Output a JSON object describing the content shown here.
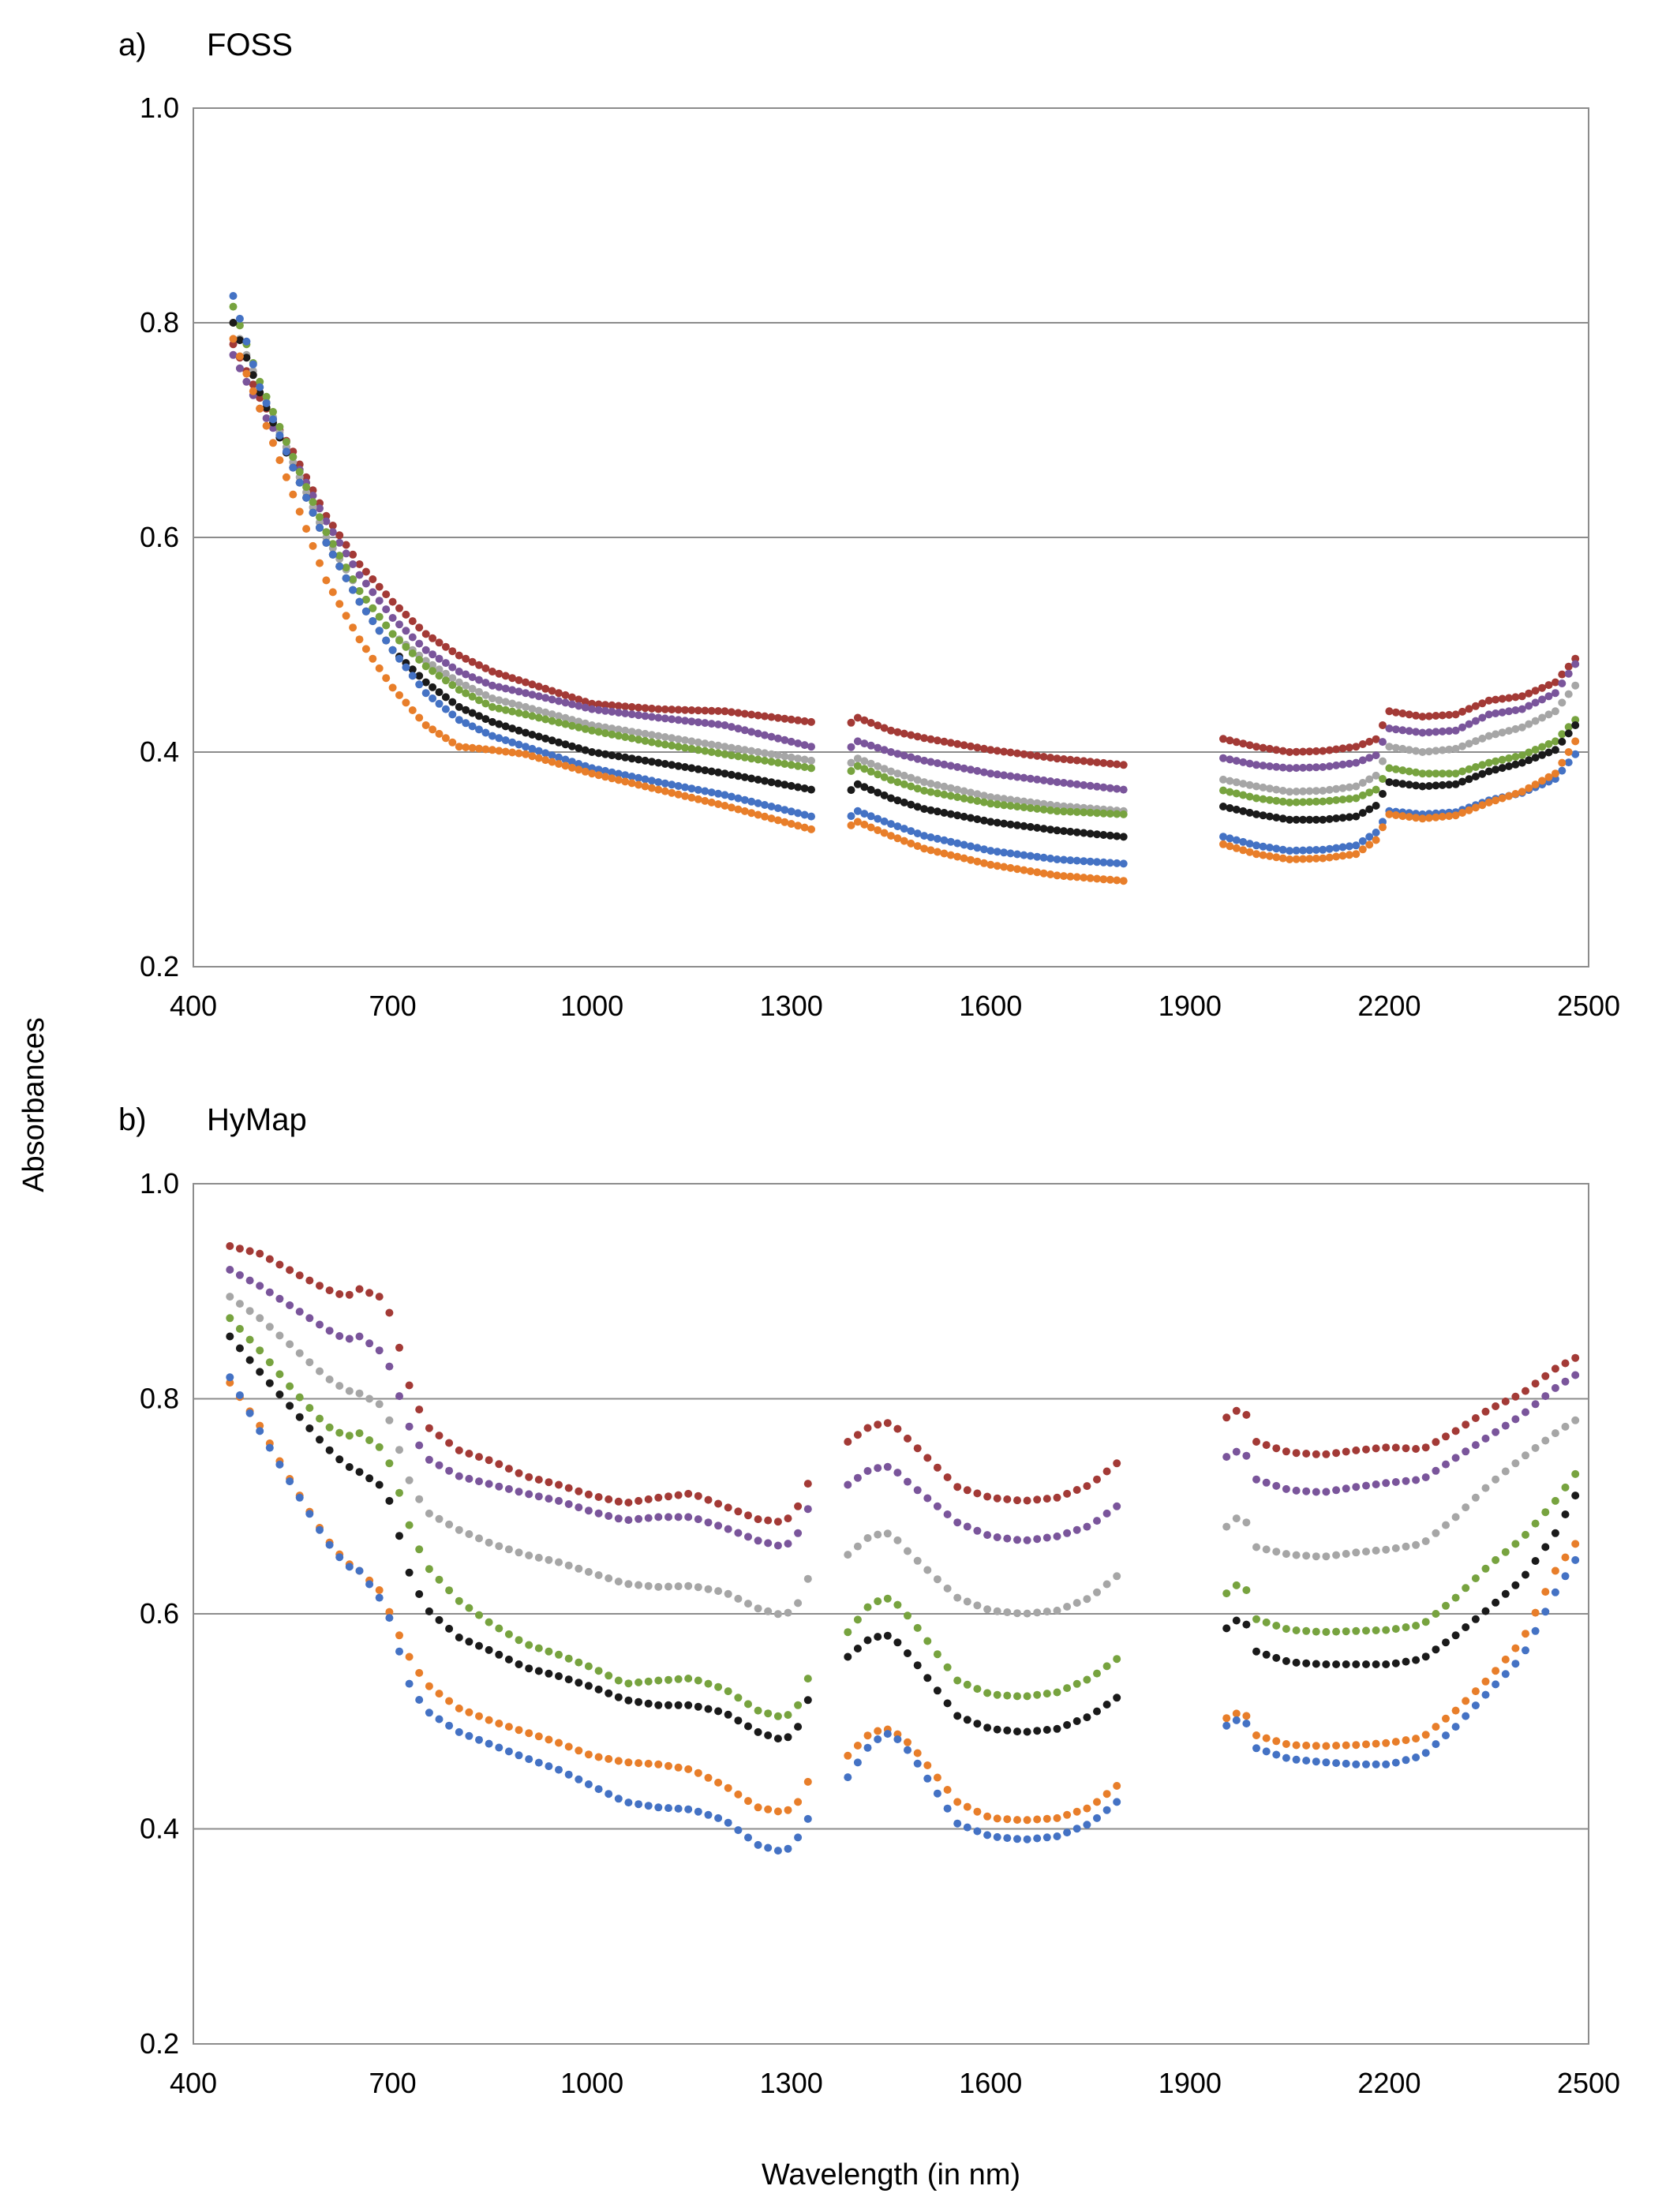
{
  "figure": {
    "y_axis_title": "Absorbances",
    "x_axis_title": "Wavelength (in nm)"
  },
  "chart_data": [
    {
      "type": "scatter",
      "panel": "a)",
      "title": "FOSS",
      "xlabel": "Wavelength (in nm)",
      "ylabel": "Absorbances",
      "xlim": [
        400,
        2500
      ],
      "ylim": [
        0.2,
        1.0
      ],
      "xticks": [
        "400",
        "700",
        "1000",
        "1300",
        "1600",
        "1900",
        "2200",
        "2500"
      ],
      "yticks": [
        "0.2",
        "0.4",
        "0.6",
        "0.8",
        "1.0"
      ],
      "grid": "horizontal",
      "gaps_nm": [
        [
          1330,
          1385
        ],
        [
          1800,
          1945
        ]
      ],
      "x": [
        460,
        500,
        550,
        600,
        650,
        700,
        750,
        800,
        850,
        900,
        1000,
        1100,
        1200,
        1330,
        1385,
        1400,
        1450,
        1500,
        1600,
        1700,
        1800,
        1945,
        2000,
        2050,
        2100,
        2150,
        2180,
        2200,
        2250,
        2300,
        2350,
        2400,
        2450,
        2480
      ],
      "series": [
        {
          "name": "dark red",
          "color": "#A33A36",
          "values": [
            0.78,
            0.73,
            0.68,
            0.62,
            0.575,
            0.54,
            0.51,
            0.49,
            0.475,
            0.465,
            0.445,
            0.44,
            0.438,
            0.428,
            0.425,
            0.432,
            0.42,
            0.413,
            0.402,
            0.394,
            0.388,
            0.413,
            0.405,
            0.4,
            0.401,
            0.405,
            0.412,
            0.438,
            0.433,
            0.435,
            0.448,
            0.452,
            0.465,
            0.487
          ]
        },
        {
          "name": "purple",
          "color": "#7A559B",
          "values": [
            0.77,
            0.72,
            0.675,
            0.615,
            0.565,
            0.525,
            0.495,
            0.475,
            0.462,
            0.455,
            0.44,
            0.432,
            0.425,
            0.405,
            0.402,
            0.41,
            0.4,
            0.392,
            0.38,
            0.372,
            0.365,
            0.395,
            0.388,
            0.385,
            0.386,
            0.39,
            0.397,
            0.422,
            0.418,
            0.42,
            0.435,
            0.44,
            0.455,
            0.482
          ]
        },
        {
          "name": "gray",
          "color": "#A6A6A6",
          "values": [
            0.8,
            0.74,
            0.67,
            0.6,
            0.55,
            0.51,
            0.485,
            0.465,
            0.45,
            0.442,
            0.425,
            0.415,
            0.405,
            0.392,
            0.388,
            0.394,
            0.382,
            0.372,
            0.358,
            0.35,
            0.345,
            0.375,
            0.368,
            0.363,
            0.364,
            0.368,
            0.378,
            0.405,
            0.4,
            0.403,
            0.415,
            0.423,
            0.438,
            0.462
          ]
        },
        {
          "name": "green",
          "color": "#77A33F",
          "values": [
            0.815,
            0.745,
            0.675,
            0.605,
            0.55,
            0.51,
            0.48,
            0.458,
            0.442,
            0.435,
            0.42,
            0.408,
            0.398,
            0.385,
            0.38,
            0.387,
            0.374,
            0.364,
            0.352,
            0.345,
            0.342,
            0.365,
            0.357,
            0.353,
            0.354,
            0.357,
            0.365,
            0.385,
            0.38,
            0.38,
            0.39,
            0.397,
            0.41,
            0.43
          ]
        },
        {
          "name": "black",
          "color": "#1A1A1A",
          "values": [
            0.8,
            0.735,
            0.665,
            0.595,
            0.54,
            0.495,
            0.465,
            0.442,
            0.428,
            0.418,
            0.4,
            0.39,
            0.38,
            0.365,
            0.362,
            0.37,
            0.357,
            0.347,
            0.335,
            0.327,
            0.321,
            0.35,
            0.342,
            0.337,
            0.337,
            0.34,
            0.35,
            0.372,
            0.368,
            0.37,
            0.382,
            0.39,
            0.402,
            0.425
          ]
        },
        {
          "name": "blue",
          "color": "#4472C4",
          "values": [
            0.825,
            0.74,
            0.665,
            0.595,
            0.54,
            0.495,
            0.455,
            0.43,
            0.415,
            0.405,
            0.385,
            0.372,
            0.36,
            0.34,
            0.338,
            0.345,
            0.333,
            0.322,
            0.308,
            0.3,
            0.296,
            0.322,
            0.313,
            0.308,
            0.309,
            0.313,
            0.325,
            0.345,
            0.342,
            0.344,
            0.355,
            0.362,
            0.375,
            0.398
          ]
        },
        {
          "name": "orange",
          "color": "#E87E2A",
          "values": [
            0.785,
            0.72,
            0.64,
            0.56,
            0.505,
            0.46,
            0.425,
            0.405,
            0.402,
            0.398,
            0.38,
            0.365,
            0.35,
            0.328,
            0.33,
            0.335,
            0.322,
            0.31,
            0.295,
            0.285,
            0.28,
            0.315,
            0.305,
            0.3,
            0.301,
            0.305,
            0.318,
            0.342,
            0.338,
            0.341,
            0.353,
            0.363,
            0.38,
            0.41
          ]
        }
      ]
    },
    {
      "type": "scatter",
      "panel": "b)",
      "title": "HyMap",
      "xlabel": "Wavelength (in nm)",
      "ylabel": "Absorbances",
      "xlim": [
        400,
        2500
      ],
      "ylim": [
        0.2,
        1.0
      ],
      "xticks": [
        "400",
        "700",
        "1000",
        "1300",
        "1600",
        "1900",
        "2200",
        "2500"
      ],
      "yticks": [
        "0.2",
        "0.4",
        "0.6",
        "0.8",
        "1.0"
      ],
      "grid": "horizontal",
      "gaps_nm": [
        [
          1330,
          1385
        ],
        [
          1800,
          1945
        ]
      ],
      "x": [
        455,
        500,
        550,
        600,
        630,
        650,
        680,
        700,
        720,
        750,
        800,
        850,
        900,
        950,
        1000,
        1050,
        1100,
        1150,
        1200,
        1250,
        1290,
        1310,
        1330,
        1385,
        1420,
        1450,
        1480,
        1550,
        1600,
        1650,
        1700,
        1750,
        1790,
        1800,
        1945,
        1965,
        1985,
        2000,
        2050,
        2100,
        2150,
        2200,
        2250,
        2300,
        2350,
        2400,
        2450,
        2480
      ],
      "series": [
        {
          "name": "dark red",
          "color": "#A33A36",
          "values": [
            0.942,
            0.935,
            0.918,
            0.902,
            0.895,
            0.902,
            0.895,
            0.875,
            0.82,
            0.775,
            0.752,
            0.742,
            0.728,
            0.72,
            0.71,
            0.703,
            0.708,
            0.712,
            0.7,
            0.688,
            0.685,
            0.7,
            0.728,
            0.76,
            0.775,
            0.778,
            0.76,
            0.718,
            0.708,
            0.705,
            0.708,
            0.72,
            0.74,
            0.765,
            0.775,
            0.79,
            0.785,
            0.76,
            0.75,
            0.748,
            0.752,
            0.755,
            0.753,
            0.77,
            0.79,
            0.805,
            0.828,
            0.838
          ]
        },
        {
          "name": "purple",
          "color": "#7A559B",
          "values": [
            0.92,
            0.905,
            0.885,
            0.865,
            0.855,
            0.858,
            0.845,
            0.825,
            0.78,
            0.745,
            0.728,
            0.72,
            0.712,
            0.705,
            0.695,
            0.687,
            0.69,
            0.69,
            0.68,
            0.668,
            0.662,
            0.675,
            0.705,
            0.72,
            0.735,
            0.737,
            0.72,
            0.685,
            0.672,
            0.668,
            0.672,
            0.682,
            0.7,
            0.725,
            0.74,
            0.752,
            0.747,
            0.725,
            0.715,
            0.713,
            0.718,
            0.722,
            0.725,
            0.745,
            0.765,
            0.785,
            0.81,
            0.822
          ]
        },
        {
          "name": "gray",
          "color": "#A6A6A6",
          "values": [
            0.895,
            0.875,
            0.848,
            0.82,
            0.808,
            0.805,
            0.795,
            0.775,
            0.73,
            0.695,
            0.678,
            0.665,
            0.655,
            0.648,
            0.638,
            0.628,
            0.625,
            0.626,
            0.62,
            0.605,
            0.598,
            0.61,
            0.64,
            0.655,
            0.673,
            0.675,
            0.655,
            0.615,
            0.603,
            0.6,
            0.603,
            0.615,
            0.635,
            0.662,
            0.672,
            0.69,
            0.685,
            0.662,
            0.655,
            0.653,
            0.657,
            0.66,
            0.665,
            0.69,
            0.72,
            0.745,
            0.768,
            0.78
          ]
        },
        {
          "name": "green",
          "color": "#77A33F",
          "values": [
            0.875,
            0.845,
            0.808,
            0.775,
            0.765,
            0.768,
            0.755,
            0.735,
            0.69,
            0.645,
            0.612,
            0.59,
            0.572,
            0.562,
            0.55,
            0.535,
            0.538,
            0.54,
            0.53,
            0.51,
            0.503,
            0.515,
            0.548,
            0.583,
            0.61,
            0.615,
            0.595,
            0.538,
            0.525,
            0.523,
            0.527,
            0.54,
            0.558,
            0.58,
            0.61,
            0.628,
            0.622,
            0.595,
            0.585,
            0.583,
            0.584,
            0.585,
            0.59,
            0.615,
            0.645,
            0.67,
            0.705,
            0.73
          ]
        },
        {
          "name": "black",
          "color": "#1A1A1A",
          "values": [
            0.858,
            0.825,
            0.79,
            0.755,
            0.738,
            0.732,
            0.72,
            0.7,
            0.645,
            0.605,
            0.578,
            0.565,
            0.55,
            0.542,
            0.532,
            0.52,
            0.515,
            0.515,
            0.508,
            0.49,
            0.482,
            0.495,
            0.528,
            0.56,
            0.578,
            0.58,
            0.56,
            0.505,
            0.493,
            0.49,
            0.493,
            0.505,
            0.522,
            0.545,
            0.578,
            0.595,
            0.59,
            0.565,
            0.555,
            0.553,
            0.553,
            0.553,
            0.558,
            0.58,
            0.605,
            0.632,
            0.675,
            0.71
          ]
        },
        {
          "name": "orange",
          "color": "#E87E2A",
          "values": [
            0.815,
            0.775,
            0.72,
            0.67,
            0.648,
            0.64,
            0.622,
            0.595,
            0.565,
            0.535,
            0.512,
            0.5,
            0.49,
            0.48,
            0.468,
            0.462,
            0.46,
            0.455,
            0.44,
            0.42,
            0.415,
            0.425,
            0.45,
            0.468,
            0.49,
            0.493,
            0.478,
            0.425,
            0.41,
            0.408,
            0.41,
            0.42,
            0.44,
            0.47,
            0.498,
            0.508,
            0.505,
            0.487,
            0.478,
            0.477,
            0.478,
            0.48,
            0.485,
            0.51,
            0.54,
            0.575,
            0.64,
            0.665
          ]
        },
        {
          "name": "blue",
          "color": "#4472C4",
          "values": [
            0.82,
            0.77,
            0.718,
            0.668,
            0.645,
            0.64,
            0.615,
            0.59,
            0.54,
            0.51,
            0.49,
            0.478,
            0.466,
            0.455,
            0.44,
            0.425,
            0.42,
            0.418,
            0.408,
            0.385,
            0.378,
            0.392,
            0.415,
            0.448,
            0.48,
            0.49,
            0.47,
            0.405,
            0.393,
            0.39,
            0.393,
            0.405,
            0.425,
            0.455,
            0.49,
            0.502,
            0.498,
            0.475,
            0.465,
            0.462,
            0.46,
            0.46,
            0.468,
            0.495,
            0.528,
            0.56,
            0.62,
            0.65
          ]
        }
      ]
    }
  ]
}
